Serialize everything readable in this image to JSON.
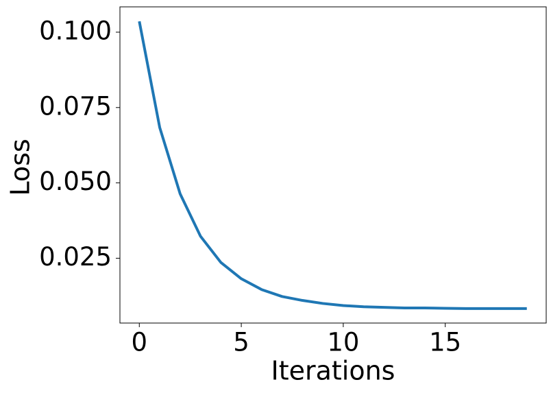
{
  "chart_data": {
    "type": "line",
    "xlabel": "Iterations",
    "ylabel": "Loss",
    "x": [
      0,
      1,
      2,
      3,
      4,
      5,
      6,
      7,
      8,
      9,
      10,
      11,
      12,
      13,
      14,
      15,
      16,
      17,
      18,
      19
    ],
    "series": [
      {
        "color": "#1f77b4",
        "values": [
          0.1036,
          0.0684,
          0.0464,
          0.0323,
          0.0236,
          0.0182,
          0.0146,
          0.0123,
          0.011,
          0.01,
          0.0093,
          0.0089,
          0.0087,
          0.0085,
          0.0085,
          0.0084,
          0.0083,
          0.0083,
          0.0083,
          0.0083
        ]
      }
    ],
    "xlim": [
      -0.95,
      19.95
    ],
    "ylim": [
      0.0035,
      0.1084
    ],
    "xticks": [
      0,
      5,
      10,
      15
    ],
    "yticks": [
      {
        "value": 0.025,
        "label": "0.025"
      },
      {
        "value": 0.05,
        "label": "0.050"
      },
      {
        "value": 0.075,
        "label": "0.075"
      },
      {
        "value": 0.1,
        "label": "0.100"
      }
    ]
  }
}
